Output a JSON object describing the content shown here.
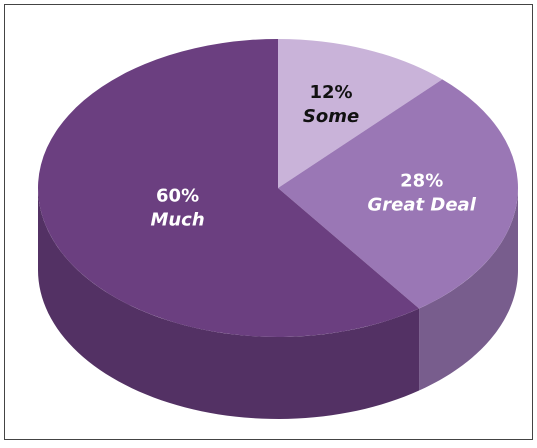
{
  "chart_data": {
    "type": "pie3d",
    "categories": [
      "Some",
      "Great Deal",
      "Much"
    ],
    "values": [
      12,
      28,
      60
    ],
    "value_labels": [
      "12%",
      "28%",
      "60%"
    ],
    "colors": [
      "#c9b3d9",
      "#9a77b5",
      "#6b3f80"
    ]
  }
}
